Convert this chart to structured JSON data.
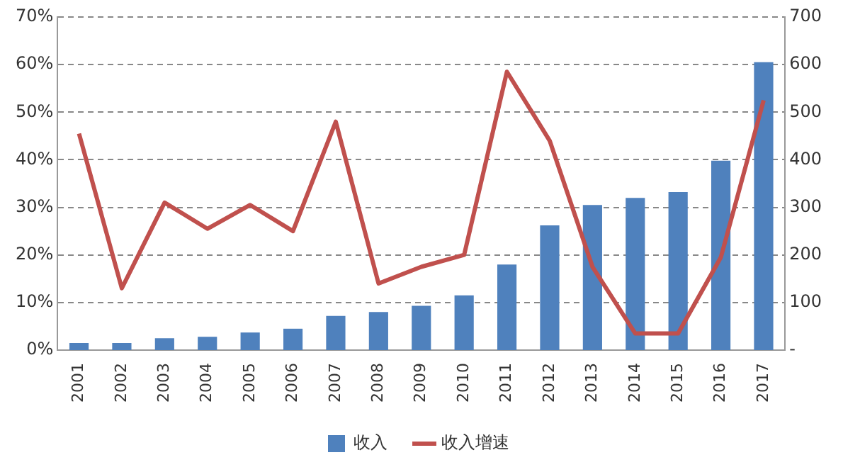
{
  "chart_data": {
    "type": "bar",
    "categories": [
      "2001",
      "2002",
      "2003",
      "2004",
      "2005",
      "2006",
      "2007",
      "2008",
      "2009",
      "2010",
      "2011",
      "2012",
      "2013",
      "2014",
      "2015",
      "2016",
      "2017"
    ],
    "series": [
      {
        "name": "收入",
        "axis": "y2",
        "color": "#4f81bd",
        "values": [
          15,
          15,
          25,
          28,
          37,
          45,
          72,
          80,
          93,
          115,
          180,
          262,
          305,
          320,
          332,
          398,
          605
        ]
      },
      {
        "name": "收入增速",
        "type": "line",
        "axis": "y",
        "color": "#c0504d",
        "values": [
          45.5,
          13,
          31,
          25.5,
          30.5,
          25,
          48,
          14,
          17.5,
          20,
          58.5,
          44,
          17.5,
          3.5,
          3.5,
          19.5,
          52.5
        ]
      }
    ],
    "ylim": [
      0,
      70
    ],
    "yticks": [
      {
        "value": 0,
        "label": "0%"
      },
      {
        "value": 10,
        "label": "10%"
      },
      {
        "value": 20,
        "label": "20%"
      },
      {
        "value": 30,
        "label": "30%"
      },
      {
        "value": 40,
        "label": "40%"
      },
      {
        "value": 50,
        "label": "50%"
      },
      {
        "value": 60,
        "label": "60%"
      },
      {
        "value": 70,
        "label": "70%"
      }
    ],
    "y2lim": [
      0,
      700
    ],
    "y2ticks": [
      {
        "value": 0,
        "label": "-"
      },
      100,
      200,
      300,
      400,
      500,
      600,
      700
    ],
    "grid": "y",
    "legend": "bottom",
    "marker": "none",
    "line_style": "solid"
  }
}
